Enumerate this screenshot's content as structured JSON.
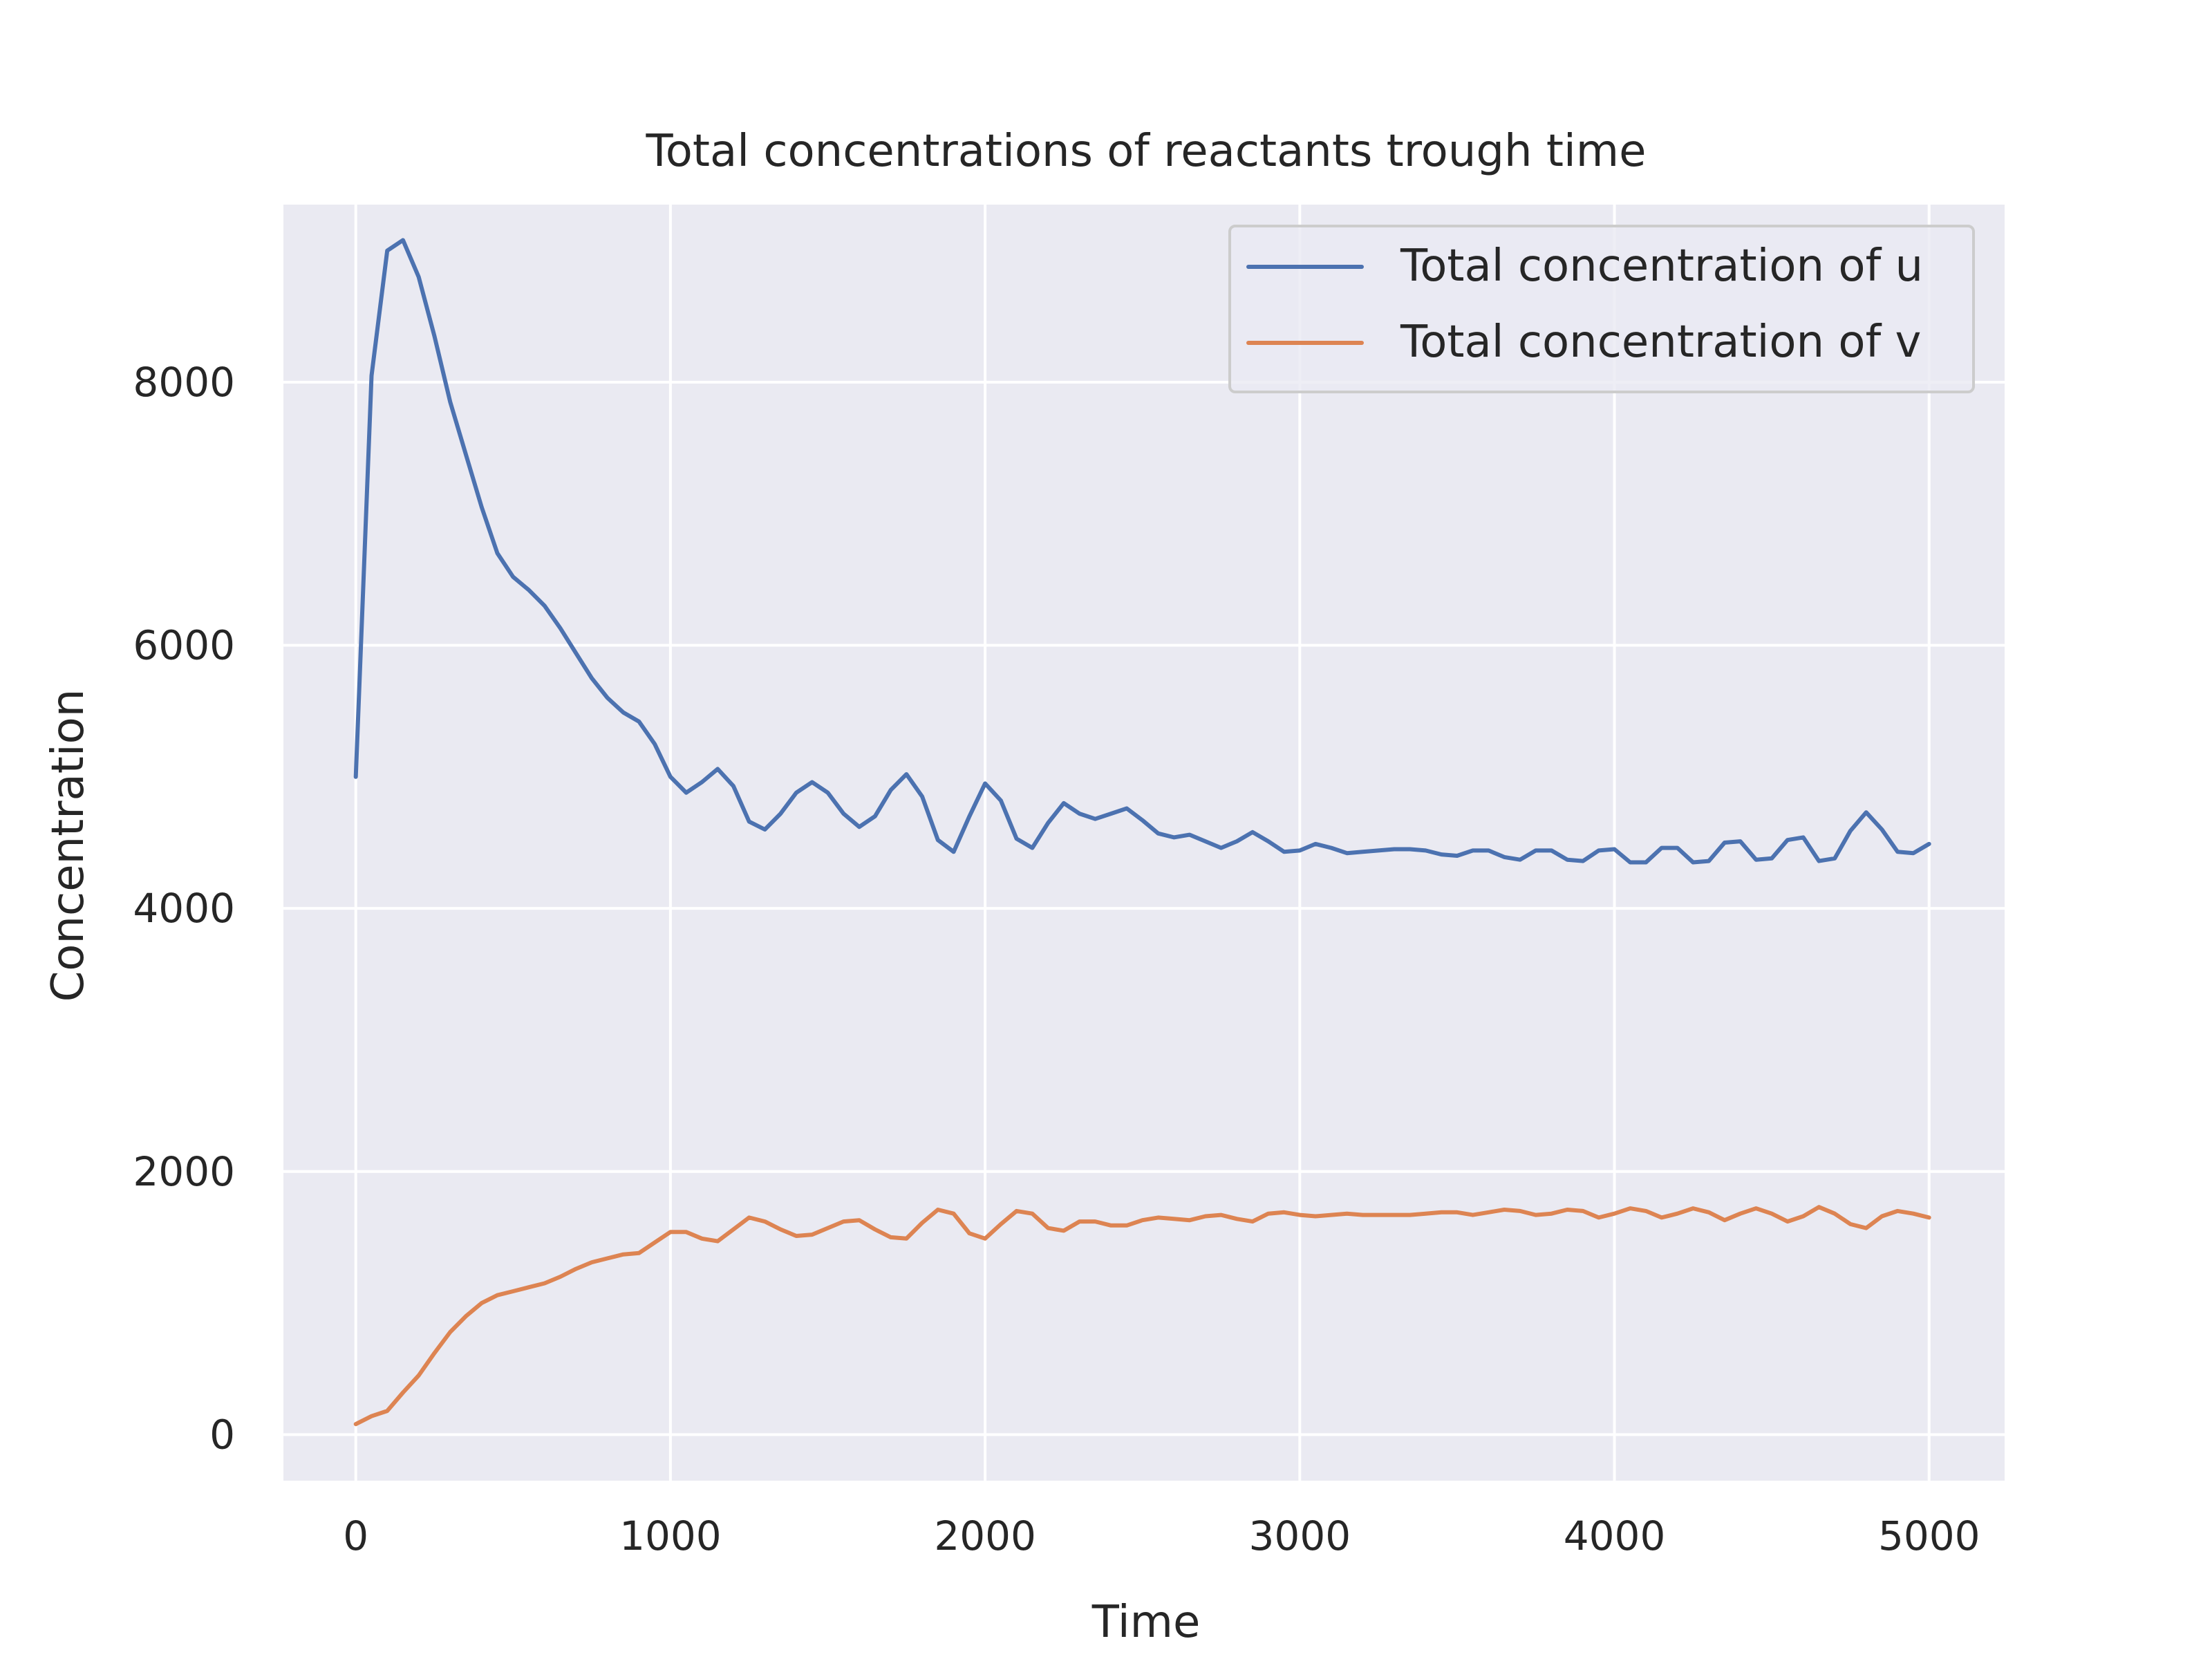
{
  "chart_data": {
    "type": "line",
    "title": "Total concentrations of reactants trough time",
    "xlabel": "Time",
    "ylabel": "Concentration",
    "xlim": [
      -230,
      5240
    ],
    "ylim": [
      -350,
      9350
    ],
    "xticks": [
      0,
      1000,
      2000,
      3000,
      4000,
      5000
    ],
    "yticks": [
      0,
      2000,
      4000,
      6000,
      8000
    ],
    "grid": true,
    "legend": "top-right",
    "background": "#EAEAF2",
    "series": [
      {
        "name": "Total concentration of u",
        "color": "#4C72B0",
        "x": [
          0,
          50,
          100,
          150,
          200,
          250,
          300,
          350,
          400,
          450,
          500,
          550,
          600,
          650,
          700,
          750,
          800,
          850,
          900,
          950,
          1000,
          1050,
          1100,
          1150,
          1200,
          1250,
          1300,
          1350,
          1400,
          1450,
          1500,
          1550,
          1600,
          1650,
          1700,
          1750,
          1800,
          1850,
          1900,
          1950,
          2000,
          2050,
          2100,
          2150,
          2200,
          2250,
          2300,
          2350,
          2400,
          2450,
          2500,
          2550,
          2600,
          2650,
          2700,
          2750,
          2800,
          2850,
          2900,
          2950,
          3000,
          3050,
          3100,
          3150,
          3200,
          3250,
          3300,
          3350,
          3400,
          3450,
          3500,
          3550,
          3600,
          3650,
          3700,
          3750,
          3800,
          3850,
          3900,
          3950,
          4000,
          4050,
          4100,
          4150,
          4200,
          4250,
          4300,
          4350,
          4400,
          4450,
          4500,
          4550,
          4600,
          4650,
          4700,
          4750,
          4800,
          4850,
          4900,
          4950,
          5000
        ],
        "y": [
          5000,
          8050,
          9000,
          9080,
          8800,
          8350,
          7850,
          7450,
          7050,
          6700,
          6520,
          6420,
          6300,
          6130,
          5940,
          5750,
          5600,
          5490,
          5420,
          5250,
          5000,
          4880,
          4960,
          5060,
          4930,
          4660,
          4600,
          4720,
          4880,
          4960,
          4880,
          4720,
          4620,
          4700,
          4900,
          5020,
          4850,
          4520,
          4430,
          4700,
          4950,
          4820,
          4530,
          4460,
          4650,
          4800,
          4720,
          4680,
          4720,
          4760,
          4670,
          4570,
          4540,
          4560,
          4510,
          4460,
          4510,
          4580,
          4510,
          4430,
          4440,
          4490,
          4460,
          4420,
          4430,
          4440,
          4450,
          4450,
          4440,
          4410,
          4400,
          4440,
          4440,
          4390,
          4370,
          4440,
          4440,
          4370,
          4360,
          4440,
          4450,
          4350,
          4350,
          4460,
          4460,
          4350,
          4360,
          4500,
          4510,
          4370,
          4380,
          4520,
          4540,
          4360,
          4380,
          4590,
          4730,
          4600,
          4430,
          4420,
          4490
        ]
      },
      {
        "name": "Total concentration of v",
        "color": "#DD8452",
        "x": [
          0,
          50,
          100,
          150,
          200,
          250,
          300,
          350,
          400,
          450,
          500,
          550,
          600,
          650,
          700,
          750,
          800,
          850,
          900,
          950,
          1000,
          1050,
          1100,
          1150,
          1200,
          1250,
          1300,
          1350,
          1400,
          1450,
          1500,
          1550,
          1600,
          1650,
          1700,
          1750,
          1800,
          1850,
          1900,
          1950,
          2000,
          2050,
          2100,
          2150,
          2200,
          2250,
          2300,
          2350,
          2400,
          2450,
          2500,
          2550,
          2600,
          2650,
          2700,
          2750,
          2800,
          2850,
          2900,
          2950,
          3000,
          3050,
          3100,
          3150,
          3200,
          3250,
          3300,
          3350,
          3400,
          3450,
          3500,
          3550,
          3600,
          3650,
          3700,
          3750,
          3800,
          3850,
          3900,
          3950,
          4000,
          4050,
          4100,
          4150,
          4200,
          4250,
          4300,
          4350,
          4400,
          4450,
          4500,
          4550,
          4600,
          4650,
          4700,
          4750,
          4800,
          4850,
          4900,
          4950,
          5000
        ],
        "y": [
          80,
          140,
          180,
          320,
          450,
          620,
          780,
          900,
          1000,
          1060,
          1090,
          1120,
          1150,
          1200,
          1260,
          1310,
          1340,
          1370,
          1380,
          1460,
          1540,
          1540,
          1490,
          1470,
          1560,
          1650,
          1620,
          1560,
          1510,
          1520,
          1570,
          1620,
          1630,
          1560,
          1500,
          1490,
          1610,
          1710,
          1680,
          1530,
          1490,
          1600,
          1700,
          1680,
          1570,
          1550,
          1620,
          1620,
          1590,
          1590,
          1630,
          1650,
          1640,
          1630,
          1660,
          1670,
          1640,
          1620,
          1680,
          1690,
          1670,
          1660,
          1670,
          1680,
          1670,
          1670,
          1670,
          1670,
          1680,
          1690,
          1690,
          1670,
          1690,
          1710,
          1700,
          1670,
          1680,
          1710,
          1700,
          1650,
          1680,
          1720,
          1700,
          1650,
          1680,
          1720,
          1690,
          1630,
          1680,
          1720,
          1680,
          1620,
          1660,
          1730,
          1680,
          1600,
          1570,
          1660,
          1700,
          1680,
          1650
        ]
      }
    ]
  }
}
